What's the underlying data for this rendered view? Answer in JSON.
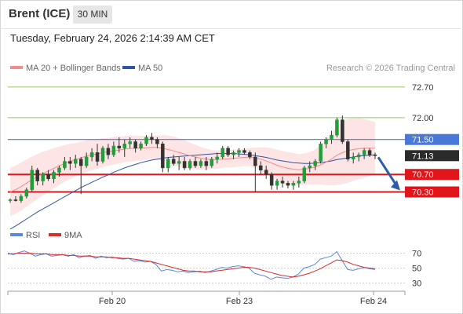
{
  "header": {
    "instrument": "Brent (ICE)",
    "timeframe": "30 MIN",
    "timestamp": "Tuesday, February 24, 2026 2:14:39 AM CET"
  },
  "legend": {
    "ma20_label": "MA 20 + Bollinger Bands",
    "ma50_label": "MA 50",
    "research_note": "Research © 2026 Trading Central",
    "rsi_label": "RSI",
    "ma9_label": "9MA"
  },
  "colors": {
    "ma20": "#f28b8b",
    "bollinger_fill": "#fde0e0",
    "ma50": "#2f55a4",
    "resistance_green": "#8fce5e",
    "pivot_blue": "#4a78d6",
    "support_red": "#e0161b",
    "current_price_bg": "#2b2b2b",
    "rsi_line": "#5b86e5",
    "rsi_ma": "#d92b2b",
    "arrow": "#2b5ca8"
  },
  "chart_data": [
    {
      "type": "candlestick",
      "xlabel": "",
      "ylabel": "",
      "x_ticks": [
        "Feb 20",
        "Feb 23",
        "Feb 24"
      ],
      "ylim": [
        69.5,
        72.95
      ],
      "levels": [
        {
          "value": 72.7,
          "label": "72.70",
          "kind": "resistance"
        },
        {
          "value": 72.0,
          "label": "72.00",
          "kind": "resistance"
        },
        {
          "value": 71.5,
          "label": "71.50",
          "kind": "pivot"
        },
        {
          "value": 71.13,
          "label": "71.13",
          "kind": "current"
        },
        {
          "value": 70.7,
          "label": "70.70",
          "kind": "support"
        },
        {
          "value": 70.3,
          "label": "70.30",
          "kind": "support"
        }
      ],
      "candles": [
        [
          70.1,
          70.15,
          70.05,
          70.12
        ],
        [
          70.12,
          70.2,
          70.08,
          70.1
        ],
        [
          70.1,
          70.25,
          70.05,
          70.2
        ],
        [
          70.2,
          70.4,
          70.15,
          70.35
        ],
        [
          70.35,
          70.9,
          70.3,
          70.8
        ],
        [
          70.8,
          70.85,
          70.45,
          70.55
        ],
        [
          70.55,
          70.75,
          70.45,
          70.7
        ],
        [
          70.7,
          70.8,
          70.55,
          70.6
        ],
        [
          70.6,
          70.8,
          70.5,
          70.75
        ],
        [
          70.75,
          70.9,
          70.65,
          70.85
        ],
        [
          70.85,
          71.1,
          70.8,
          71.0
        ],
        [
          71.0,
          71.1,
          70.8,
          70.95
        ],
        [
          70.95,
          71.15,
          70.85,
          71.05
        ],
        [
          71.05,
          71.1,
          70.25,
          70.9
        ],
        [
          70.9,
          71.2,
          70.85,
          71.1
        ],
        [
          71.1,
          71.3,
          71.0,
          71.2
        ],
        [
          71.2,
          71.4,
          70.9,
          71.0
        ],
        [
          71.0,
          71.35,
          70.95,
          71.3
        ],
        [
          71.3,
          71.4,
          71.05,
          71.15
        ],
        [
          71.15,
          71.45,
          71.1,
          71.35
        ],
        [
          71.35,
          71.55,
          71.2,
          71.3
        ],
        [
          71.3,
          71.5,
          71.1,
          71.4
        ],
        [
          71.4,
          71.55,
          71.3,
          71.45
        ],
        [
          71.45,
          71.5,
          71.2,
          71.3
        ],
        [
          71.3,
          71.45,
          71.25,
          71.4
        ],
        [
          71.4,
          71.6,
          71.35,
          71.55
        ],
        [
          71.55,
          71.65,
          71.4,
          71.5
        ],
        [
          71.5,
          71.55,
          71.3,
          71.4
        ],
        [
          71.4,
          71.45,
          70.75,
          70.85
        ],
        [
          70.85,
          71.1,
          70.75,
          71.05
        ],
        [
          71.05,
          71.15,
          70.9,
          70.95
        ],
        [
          70.95,
          71.1,
          70.8,
          71.0
        ],
        [
          71.0,
          71.1,
          70.8,
          70.85
        ],
        [
          70.85,
          71.05,
          70.8,
          71.0
        ],
        [
          71.0,
          71.1,
          70.85,
          70.9
        ],
        [
          70.9,
          71.05,
          70.85,
          71.0
        ],
        [
          71.0,
          71.1,
          70.8,
          70.9
        ],
        [
          70.9,
          71.1,
          70.85,
          71.05
        ],
        [
          71.05,
          71.2,
          70.95,
          71.1
        ],
        [
          71.1,
          71.35,
          71.05,
          71.3
        ],
        [
          71.3,
          71.35,
          71.1,
          71.15
        ],
        [
          71.15,
          71.25,
          71.05,
          71.2
        ],
        [
          71.2,
          71.3,
          71.1,
          71.25
        ],
        [
          71.25,
          71.3,
          71.15,
          71.2
        ],
        [
          71.2,
          71.25,
          71.05,
          71.1
        ],
        [
          71.1,
          71.2,
          70.3,
          70.9
        ],
        [
          70.9,
          71.0,
          70.7,
          70.8
        ],
        [
          70.8,
          70.9,
          70.6,
          70.7
        ],
        [
          70.7,
          70.75,
          70.35,
          70.45
        ],
        [
          70.45,
          70.6,
          70.35,
          70.55
        ],
        [
          70.55,
          70.65,
          70.4,
          70.5
        ],
        [
          70.5,
          70.55,
          70.38,
          70.45
        ],
        [
          70.45,
          70.55,
          70.35,
          70.5
        ],
        [
          70.5,
          70.65,
          70.4,
          70.55
        ],
        [
          70.55,
          70.9,
          70.5,
          70.85
        ],
        [
          70.85,
          71.0,
          70.75,
          70.9
        ],
        [
          70.9,
          71.05,
          70.8,
          71.0
        ],
        [
          71.0,
          71.45,
          70.95,
          71.4
        ],
        [
          71.4,
          71.55,
          71.3,
          71.5
        ],
        [
          71.5,
          71.7,
          71.4,
          71.6
        ],
        [
          71.6,
          72.0,
          71.55,
          71.95
        ],
        [
          71.95,
          72.05,
          71.4,
          71.45
        ],
        [
          71.45,
          71.5,
          71.0,
          71.05
        ],
        [
          71.05,
          71.2,
          70.95,
          71.1
        ],
        [
          71.1,
          71.2,
          71.0,
          71.15
        ],
        [
          71.15,
          71.3,
          71.05,
          71.25
        ],
        [
          71.25,
          71.3,
          71.1,
          71.15
        ],
        [
          71.15,
          71.2,
          71.05,
          71.13
        ]
      ],
      "ma20": [
        70.3,
        70.35,
        70.42,
        70.5,
        70.58,
        70.65,
        70.72,
        70.78,
        70.84,
        70.9,
        70.95,
        71.0,
        71.04,
        71.08,
        71.12,
        71.15,
        71.17,
        71.2,
        71.22,
        71.24,
        71.26,
        71.28,
        71.29,
        71.3,
        71.3,
        71.31,
        71.32,
        71.32,
        71.3,
        71.27,
        71.24,
        71.2,
        71.17,
        71.13,
        71.1,
        71.07,
        71.05,
        71.04,
        71.04,
        71.05,
        71.06,
        71.07,
        71.08,
        71.09,
        71.1,
        71.08,
        71.05,
        71.01,
        70.96,
        70.91,
        70.87,
        70.84,
        70.82,
        70.81,
        70.82,
        70.84,
        70.87,
        70.92,
        70.98,
        71.05,
        71.14,
        71.2,
        71.24,
        71.27,
        71.29,
        71.3,
        71.3,
        71.3
      ],
      "bb_width": [
        0.55,
        0.55,
        0.55,
        0.54,
        0.53,
        0.52,
        0.5,
        0.48,
        0.46,
        0.44,
        0.42,
        0.4,
        0.38,
        0.37,
        0.36,
        0.35,
        0.34,
        0.33,
        0.32,
        0.32,
        0.31,
        0.3,
        0.3,
        0.29,
        0.28,
        0.28,
        0.27,
        0.27,
        0.3,
        0.32,
        0.33,
        0.33,
        0.32,
        0.3,
        0.28,
        0.26,
        0.24,
        0.22,
        0.21,
        0.2,
        0.2,
        0.2,
        0.2,
        0.2,
        0.21,
        0.24,
        0.27,
        0.31,
        0.34,
        0.36,
        0.37,
        0.37,
        0.37,
        0.36,
        0.36,
        0.37,
        0.4,
        0.45,
        0.52,
        0.6,
        0.68,
        0.72,
        0.73,
        0.72,
        0.7,
        0.67,
        0.64,
        0.6
      ],
      "ma50": [
        69.45,
        69.52,
        69.6,
        69.68,
        69.76,
        69.84,
        69.91,
        69.98,
        70.05,
        70.12,
        70.19,
        70.26,
        70.33,
        70.4,
        70.46,
        70.52,
        70.58,
        70.64,
        70.69,
        70.75,
        70.8,
        70.85,
        70.89,
        70.93,
        70.97,
        71.0,
        71.03,
        71.05,
        71.07,
        71.09,
        71.1,
        71.11,
        71.12,
        71.13,
        71.14,
        71.15,
        71.16,
        71.17,
        71.18,
        71.18,
        71.18,
        71.18,
        71.17,
        71.16,
        71.15,
        71.13,
        71.11,
        71.09,
        71.06,
        71.03,
        71.01,
        70.99,
        70.97,
        70.96,
        70.95,
        70.95,
        70.96,
        70.97,
        70.99,
        71.01,
        71.04,
        71.06,
        71.08,
        71.1,
        71.12,
        71.13,
        71.14,
        71.15
      ],
      "projection": {
        "from": 71.13,
        "to": 70.3
      }
    },
    {
      "type": "line",
      "title": "",
      "xlabel": "",
      "ylabel": "",
      "ylim": [
        20,
        80
      ],
      "y_ticks": [
        70,
        50,
        30
      ],
      "series": [
        {
          "name": "RSI",
          "values": [
            70,
            68,
            71,
            73,
            70,
            66,
            68,
            69,
            66,
            67,
            68,
            66,
            68,
            64,
            66,
            67,
            63,
            66,
            64,
            65,
            63,
            62,
            63,
            59,
            60,
            58,
            59,
            55,
            46,
            48,
            47,
            45,
            46,
            44,
            45,
            46,
            44,
            46,
            48,
            51,
            50,
            52,
            53,
            52,
            50,
            43,
            41,
            39,
            35,
            38,
            37,
            36,
            38,
            42,
            50,
            52,
            55,
            62,
            64,
            66,
            72,
            60,
            48,
            47,
            49,
            51,
            49,
            48
          ]
        },
        {
          "name": "9MA",
          "values": [
            69,
            69,
            70,
            70,
            70,
            69,
            69,
            69,
            68,
            68,
            68,
            67,
            67,
            66,
            66,
            66,
            65,
            65,
            65,
            64,
            64,
            63,
            63,
            62,
            61,
            60,
            59,
            57,
            55,
            53,
            51,
            49,
            47,
            46,
            46,
            45,
            45,
            45,
            46,
            47,
            48,
            49,
            50,
            51,
            51,
            50,
            48,
            46,
            44,
            42,
            40,
            39,
            38,
            39,
            41,
            43,
            46,
            49,
            53,
            57,
            61,
            60,
            58,
            55,
            53,
            51,
            50,
            49
          ]
        }
      ]
    }
  ]
}
